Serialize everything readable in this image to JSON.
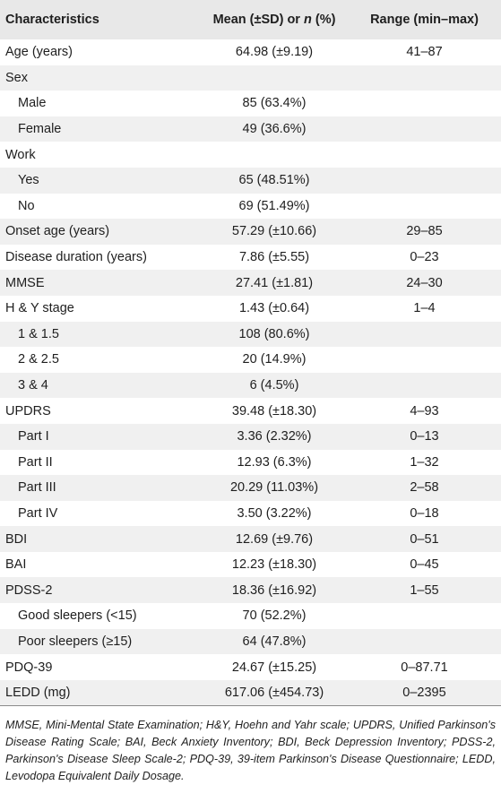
{
  "header": {
    "col1": "Characteristics",
    "col2_pre": "Mean (±SD) or ",
    "col2_n": "n",
    "col2_post": " (%)",
    "col3": "Range (min–max)"
  },
  "rows": [
    {
      "label": "Age (years)",
      "value": "64.98 (±9.19)",
      "range": "41–87",
      "indent": false
    },
    {
      "label": "Sex",
      "value": "",
      "range": "",
      "indent": false
    },
    {
      "label": "Male",
      "value": "85 (63.4%)",
      "range": "",
      "indent": true
    },
    {
      "label": "Female",
      "value": "49 (36.6%)",
      "range": "",
      "indent": true
    },
    {
      "label": "Work",
      "value": "",
      "range": "",
      "indent": false
    },
    {
      "label": "Yes",
      "value": "65 (48.51%)",
      "range": "",
      "indent": true
    },
    {
      "label": "No",
      "value": "69 (51.49%)",
      "range": "",
      "indent": true
    },
    {
      "label": "Onset age (years)",
      "value": "57.29 (±10.66)",
      "range": "29–85",
      "indent": false
    },
    {
      "label": "Disease duration (years)",
      "value": "7.86 (±5.55)",
      "range": "0–23",
      "indent": false
    },
    {
      "label": "MMSE",
      "value": "27.41 (±1.81)",
      "range": "24–30",
      "indent": false
    },
    {
      "label": "H & Y stage",
      "value": "1.43 (±0.64)",
      "range": "1–4",
      "indent": false
    },
    {
      "label": "1 & 1.5",
      "value": "108 (80.6%)",
      "range": "",
      "indent": true
    },
    {
      "label": "2 & 2.5",
      "value": "20 (14.9%)",
      "range": "",
      "indent": true
    },
    {
      "label": "3 & 4",
      "value": "6 (4.5%)",
      "range": "",
      "indent": true
    },
    {
      "label": "UPDRS",
      "value": "39.48 (±18.30)",
      "range": "4–93",
      "indent": false
    },
    {
      "label": "Part I",
      "value": "3.36 (2.32%)",
      "range": "0–13",
      "indent": true
    },
    {
      "label": "Part II",
      "value": "12.93 (6.3%)",
      "range": "1–32",
      "indent": true
    },
    {
      "label": "Part III",
      "value": "20.29 (11.03%)",
      "range": "2–58",
      "indent": true
    },
    {
      "label": "Part IV",
      "value": "3.50 (3.22%)",
      "range": "0–18",
      "indent": true
    },
    {
      "label": "BDI",
      "value": "12.69 (±9.76)",
      "range": "0–51",
      "indent": false
    },
    {
      "label": "BAI",
      "value": "12.23 (±18.30)",
      "range": "0–45",
      "indent": false
    },
    {
      "label": "PDSS-2",
      "value": "18.36 (±16.92)",
      "range": "1–55",
      "indent": false
    },
    {
      "label": "Good sleepers (<15)",
      "value": "70 (52.2%)",
      "range": "",
      "indent": true
    },
    {
      "label": "Poor sleepers (≥15)",
      "value": "64 (47.8%)",
      "range": "",
      "indent": true
    },
    {
      "label": "PDQ-39",
      "value": "24.67 (±15.25)",
      "range": "0–87.71",
      "indent": false
    },
    {
      "label": "LEDD (mg)",
      "value": "617.06 (±454.73)",
      "range": "0–2395",
      "indent": false
    }
  ],
  "footnote": "MMSE, Mini-Mental State Examination; H&Y, Hoehn and Yahr scale; UPDRS, Unified Parkinson's Disease Rating Scale; BAI, Beck Anxiety Inventory; BDI, Beck Depression Inventory; PDSS-2, Parkinson's Disease Sleep Scale-2; PDQ-39, 39-item Parkinson's Disease Questionnaire; LEDD, Levodopa Equivalent Daily Dosage.",
  "colors": {
    "header_bg": "#e8e8e8",
    "row_alt_bg": "#f0f0f0",
    "rule": "#8a8a8a"
  }
}
